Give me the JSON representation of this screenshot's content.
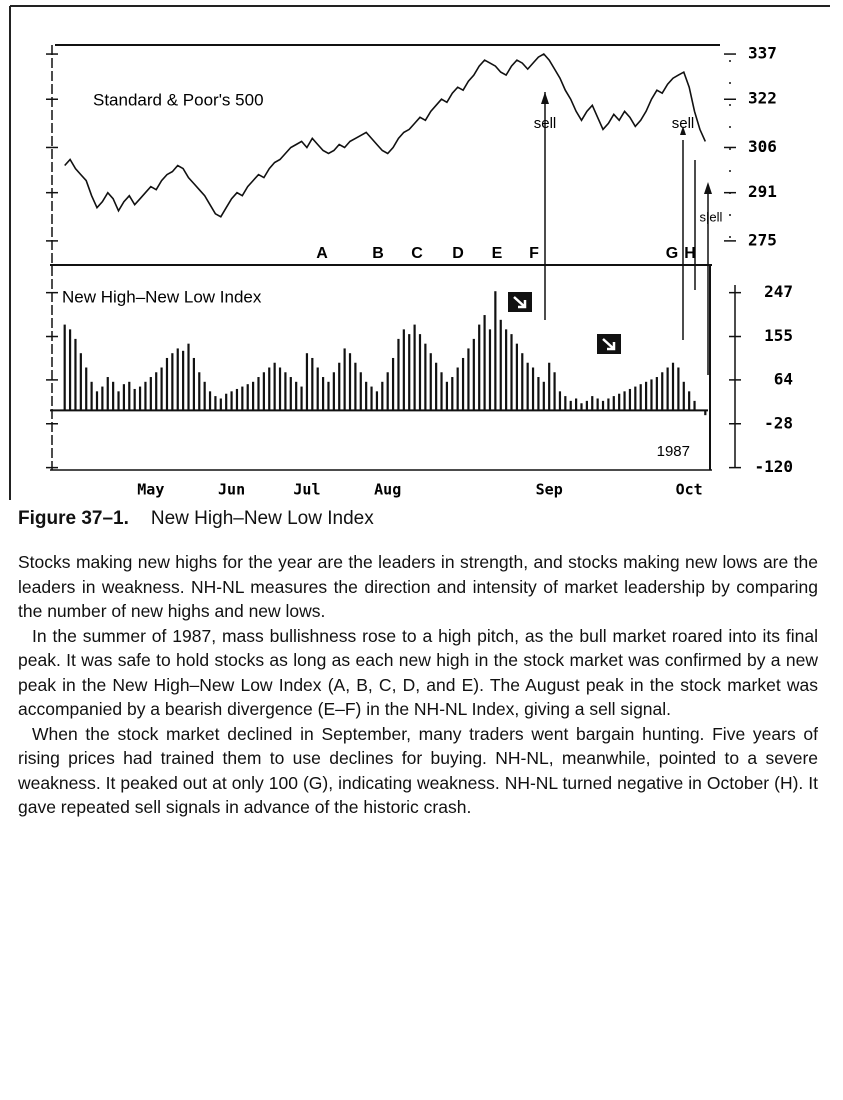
{
  "chart_data": [
    {
      "type": "line",
      "label": "Standard & Poor's 500",
      "color": "#111111",
      "values": [
        300,
        302,
        299,
        297,
        295,
        290,
        286,
        288,
        291,
        289,
        285,
        288,
        290,
        287,
        289,
        291,
        293,
        292,
        295,
        297,
        298,
        300,
        299,
        296,
        294,
        292,
        290,
        287,
        284,
        283,
        286,
        289,
        291,
        290,
        293,
        295,
        297,
        296,
        299,
        301,
        302,
        304,
        306,
        307,
        308,
        306,
        309,
        307,
        305,
        304,
        305,
        307,
        306,
        308,
        309,
        310,
        311,
        309,
        307,
        305,
        304,
        306,
        309,
        311,
        312,
        314,
        316,
        315,
        318,
        320,
        322,
        321,
        324,
        326,
        325,
        328,
        330,
        333,
        335,
        334,
        333,
        331,
        330,
        333,
        335,
        334,
        332,
        334,
        336,
        337,
        335,
        332,
        329,
        325,
        322,
        318,
        315,
        318,
        320,
        316,
        312,
        314,
        317,
        315,
        318,
        316,
        313,
        315,
        318,
        322,
        325,
        324,
        327,
        329,
        330,
        331,
        326,
        318,
        312,
        308
      ],
      "ylim": [
        267,
        340
      ],
      "yticks": [
        275,
        291,
        306,
        322,
        337
      ],
      "letters": [
        "A",
        "B",
        "C",
        "D",
        "E",
        "F",
        "G",
        "H"
      ],
      "sell_labels": [
        "sell",
        "sell",
        "s|ell"
      ]
    },
    {
      "type": "bar",
      "label": "New High–New Low Index",
      "color": "#111111",
      "categories": [
        null,
        null,
        null,
        null,
        null,
        null,
        null,
        null,
        null,
        null,
        null,
        null,
        null,
        null,
        null,
        null,
        "May",
        null,
        null,
        null,
        null,
        null,
        null,
        null,
        null,
        null,
        null,
        null,
        null,
        null,
        null,
        "Jun",
        null,
        null,
        null,
        null,
        null,
        null,
        null,
        null,
        null,
        null,
        null,
        null,
        null,
        "Jul",
        null,
        null,
        null,
        null,
        null,
        null,
        null,
        null,
        null,
        null,
        null,
        null,
        null,
        null,
        "Aug",
        null,
        null,
        null,
        null,
        null,
        null,
        null,
        null,
        null,
        null,
        null,
        null,
        null,
        null,
        null,
        null,
        null,
        null,
        null,
        null,
        null,
        null,
        null,
        null,
        null,
        null,
        null,
        null,
        null,
        "Sep",
        null,
        null,
        null,
        null,
        null,
        null,
        null,
        null,
        null,
        null,
        null,
        null,
        null,
        null,
        null,
        null,
        null,
        null,
        null,
        null,
        null,
        null,
        null,
        null,
        null,
        "Oct",
        null,
        null,
        null
      ],
      "values": [
        180,
        170,
        150,
        120,
        90,
        60,
        40,
        50,
        70,
        60,
        40,
        55,
        60,
        45,
        50,
        60,
        70,
        80,
        90,
        110,
        120,
        130,
        125,
        140,
        110,
        80,
        60,
        40,
        30,
        25,
        35,
        40,
        45,
        50,
        55,
        60,
        70,
        80,
        90,
        100,
        90,
        80,
        70,
        60,
        50,
        120,
        110,
        90,
        70,
        60,
        80,
        100,
        130,
        120,
        100,
        80,
        60,
        50,
        40,
        60,
        80,
        110,
        150,
        170,
        160,
        180,
        160,
        140,
        120,
        100,
        80,
        60,
        70,
        90,
        110,
        130,
        150,
        180,
        200,
        170,
        250,
        190,
        170,
        160,
        140,
        120,
        100,
        90,
        70,
        60,
        100,
        80,
        40,
        30,
        20,
        25,
        15,
        20,
        30,
        25,
        20,
        25,
        30,
        35,
        40,
        45,
        50,
        55,
        60,
        65,
        70,
        80,
        90,
        100,
        90,
        60,
        40,
        20,
        0,
        -10
      ],
      "ylim": [
        -125,
        305
      ],
      "yticks": [
        247,
        155,
        64,
        -28,
        -120
      ],
      "year": "1987"
    }
  ],
  "caption": {
    "label": "Figure 37–1.",
    "title": "New High–New Low Index"
  },
  "paragraphs": [
    "Stocks making new highs for the year are the leaders in strength, and stocks making new lows are the leaders in weakness. NH-NL measures the direction and intensity of market leadership by comparing the number of new highs and new lows.",
    "In the summer of 1987, mass bullishness rose to a high pitch, as the bull market roared into its final peak. It was safe to hold stocks as long as each new high in the stock market was confirmed by a new peak in the New High–New Low Index (A, B, C, D, and E). The August peak in the stock market was accompanied by a bearish divergence (E–F) in the NH-NL Index, giving a sell signal.",
    "When the stock market declined in September, many traders went bargain hunting. Five years of rising prices had trained them to use declines for buying. NH-NL, meanwhile, pointed to a severe weakness. It peaked out at only 100 (G), indicating weakness. NH-NL turned negative in October (H). It gave repeated sell signals in advance of the historic crash."
  ]
}
